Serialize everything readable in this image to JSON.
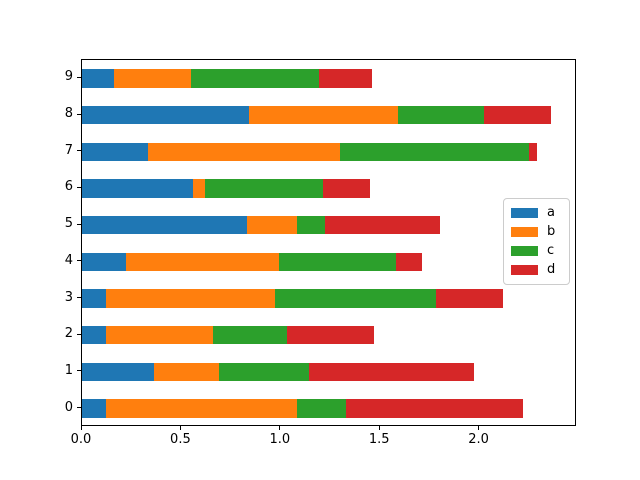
{
  "chart_data": {
    "type": "bar",
    "orientation": "horizontal",
    "stacked": true,
    "title": "",
    "xlabel": "",
    "ylabel": "",
    "categories": [
      "0",
      "1",
      "2",
      "3",
      "4",
      "5",
      "6",
      "7",
      "8",
      "9"
    ],
    "series": [
      {
        "name": "a",
        "color": "#1f77b4",
        "values": [
          0.12,
          0.36,
          0.12,
          0.12,
          0.22,
          0.83,
          0.56,
          0.33,
          0.84,
          0.16
        ]
      },
      {
        "name": "b",
        "color": "#ff7f0e",
        "values": [
          0.96,
          0.33,
          0.54,
          0.85,
          0.77,
          0.25,
          0.06,
          0.97,
          0.75,
          0.39
        ]
      },
      {
        "name": "c",
        "color": "#2ca02c",
        "values": [
          0.25,
          0.45,
          0.37,
          0.81,
          0.59,
          0.14,
          0.59,
          0.95,
          0.43,
          0.64
        ]
      },
      {
        "name": "d",
        "color": "#d62728",
        "values": [
          0.89,
          0.83,
          0.44,
          0.34,
          0.13,
          0.58,
          0.24,
          0.04,
          0.34,
          0.27
        ]
      }
    ],
    "xlim": [
      0,
      2.49
    ],
    "ylim": [
      -0.5,
      9.5
    ],
    "xticks": [
      0.0,
      0.5,
      1.0,
      1.5,
      2.0
    ],
    "xtick_labels": [
      "0.0",
      "0.5",
      "1.0",
      "1.5",
      "2.0"
    ],
    "ytick_labels": [
      "0",
      "1",
      "2",
      "3",
      "4",
      "5",
      "6",
      "7",
      "8",
      "9"
    ],
    "grid": false,
    "bar_height_fraction": 0.5,
    "legend": {
      "position": "center right",
      "entries": [
        "a",
        "b",
        "c",
        "d"
      ],
      "colors": [
        "#1f77b4",
        "#ff7f0e",
        "#2ca02c",
        "#d62728"
      ],
      "border_color": "#cccccc",
      "background": "#ffffff"
    },
    "axes_background": "#ffffff",
    "spine_color": "#000000"
  }
}
